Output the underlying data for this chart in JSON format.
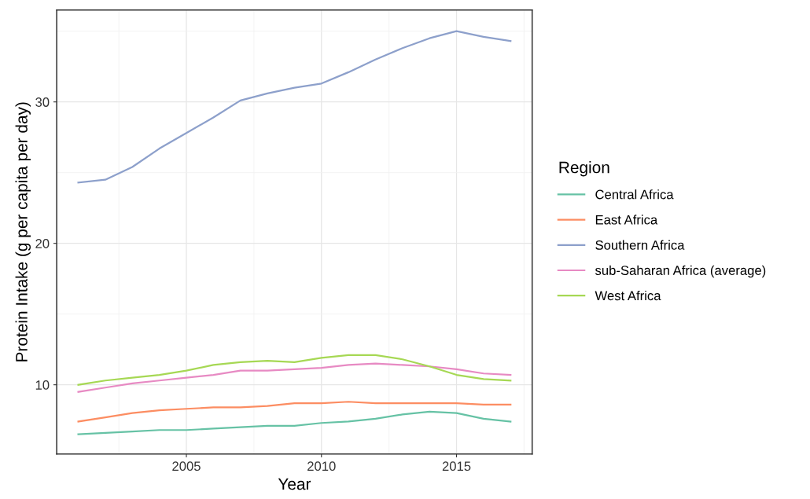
{
  "chart_data": {
    "type": "line",
    "xlabel": "Year",
    "ylabel": "Protein Intake (g per capita per day)",
    "legend_title": "Region",
    "legend": "right",
    "grid": true,
    "x": [
      2001,
      2002,
      2003,
      2004,
      2005,
      2006,
      2007,
      2008,
      2009,
      2010,
      2011,
      2012,
      2013,
      2014,
      2015,
      2016,
      2017
    ],
    "xlim": [
      2000.2,
      2017.8
    ],
    "xticks": [
      {
        "value": 2002.5,
        "label": null
      },
      2005,
      {
        "value": 2007.5,
        "label": null
      },
      2010,
      {
        "value": 2012.5,
        "label": null
      },
      2015,
      {
        "value": 2017.5,
        "label": null
      }
    ],
    "ylim": [
      5.1,
      36.5
    ],
    "yticks": [
      10,
      {
        "value": 15,
        "label": null
      },
      20,
      {
        "value": 25,
        "label": null
      },
      30,
      {
        "value": 35,
        "label": null
      }
    ],
    "series": [
      {
        "name": "Central Africa",
        "color": "#66c2a5",
        "values": [
          6.5,
          6.6,
          6.7,
          6.8,
          6.8,
          6.9,
          7.0,
          7.1,
          7.1,
          7.3,
          7.4,
          7.6,
          7.9,
          8.1,
          8.0,
          7.6,
          7.4
        ]
      },
      {
        "name": "East Africa",
        "color": "#fc8d62",
        "values": [
          7.4,
          7.7,
          8.0,
          8.2,
          8.3,
          8.4,
          8.4,
          8.5,
          8.7,
          8.7,
          8.8,
          8.7,
          8.7,
          8.7,
          8.7,
          8.6,
          8.6
        ]
      },
      {
        "name": "Southern Africa",
        "color": "#8da0cb",
        "values": [
          24.3,
          24.5,
          25.4,
          26.7,
          27.8,
          28.9,
          30.1,
          30.6,
          31.0,
          31.3,
          32.1,
          33.0,
          33.8,
          34.5,
          35.0,
          34.6,
          34.3
        ]
      },
      {
        "name": "sub-Saharan Africa (average)",
        "color": "#e78ac3",
        "values": [
          9.5,
          9.8,
          10.1,
          10.3,
          10.5,
          10.7,
          11.0,
          11.0,
          11.1,
          11.2,
          11.4,
          11.5,
          11.4,
          11.3,
          11.1,
          10.8,
          10.7
        ]
      },
      {
        "name": "West Africa",
        "color": "#a6d854",
        "values": [
          10.0,
          10.3,
          10.5,
          10.7,
          11.0,
          11.4,
          11.6,
          11.7,
          11.6,
          11.9,
          12.1,
          12.1,
          11.8,
          11.3,
          10.7,
          10.4,
          10.3
        ]
      }
    ]
  }
}
